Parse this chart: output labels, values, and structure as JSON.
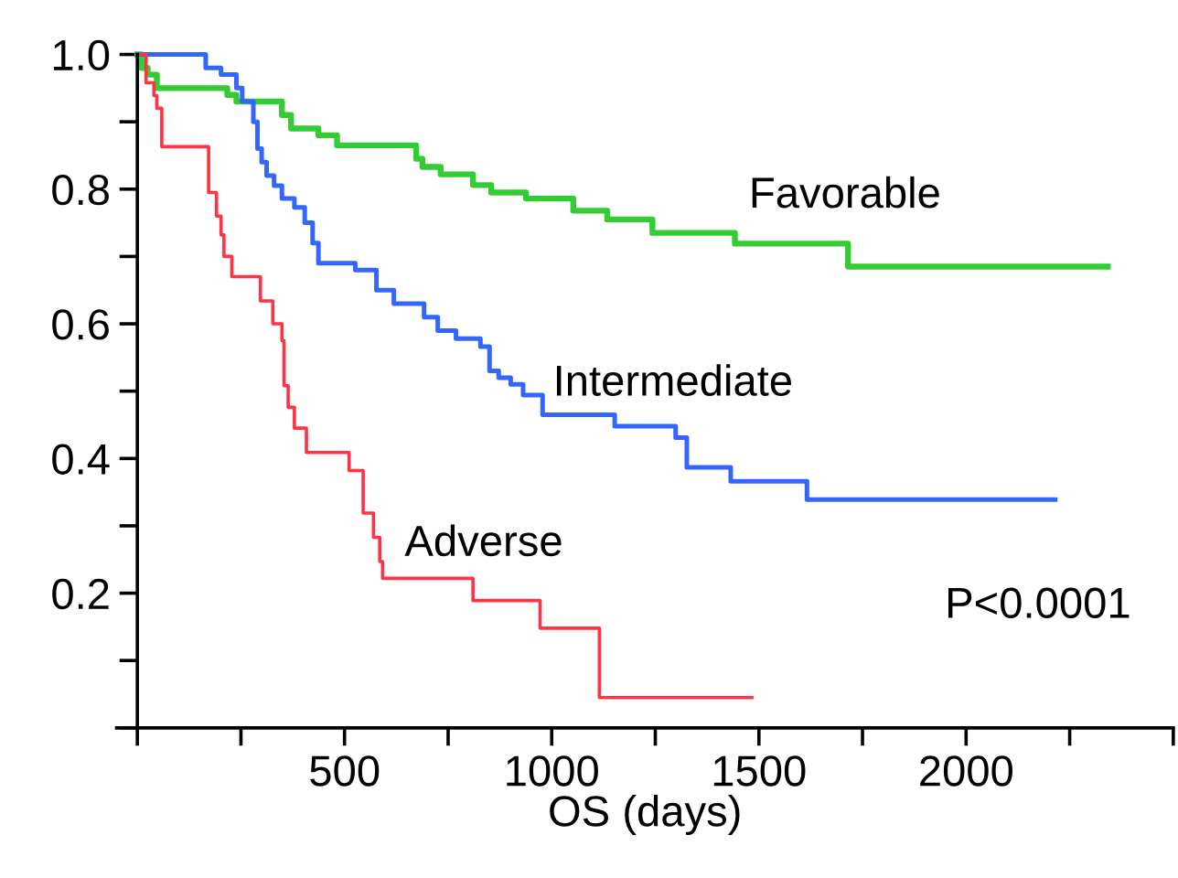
{
  "chart_data": {
    "type": "step",
    "xlabel": "OS (days)",
    "xlim": [
      -50,
      2500
    ],
    "xticks": [
      {
        "value": 0,
        "label": null
      },
      {
        "value": 250,
        "label": null
      },
      500,
      {
        "value": 750,
        "label": null
      },
      1000,
      {
        "value": 1250,
        "label": null
      },
      1500,
      {
        "value": 1750,
        "label": null
      },
      2000,
      {
        "value": 2250,
        "label": null
      },
      {
        "value": 2500,
        "label": null
      }
    ],
    "ylim": [
      0,
      1.0
    ],
    "yticks": [
      {
        "value": 0,
        "label": null
      },
      {
        "value": 0.1,
        "label": null
      },
      {
        "value": 0.2,
        "label": "0.2"
      },
      {
        "value": 0.3,
        "label": null
      },
      {
        "value": 0.4,
        "label": "0.4"
      },
      {
        "value": 0.5,
        "label": null
      },
      {
        "value": 0.6,
        "label": "0.6"
      },
      {
        "value": 0.7,
        "label": null
      },
      {
        "value": 0.8,
        "label": "0.8"
      },
      {
        "value": 0.9,
        "label": null
      },
      {
        "value": 1.0,
        "label": "1.0"
      }
    ],
    "grid": false,
    "legend": false,
    "marker": "none",
    "line_style": "solid",
    "annotations": [
      "P<0.0001"
    ],
    "series": [
      {
        "name": "Favorable",
        "color": "#33cc33",
        "x": [
          0,
          10,
          25,
          47,
          217,
          239,
          349,
          371,
          437,
          482,
          673,
          688,
          732,
          810,
          854,
          938,
          1052,
          1134,
          1243,
          1442,
          1715,
          2342
        ],
        "values": [
          1.0,
          0.98,
          0.97,
          0.95,
          0.94,
          0.93,
          0.91,
          0.89,
          0.88,
          0.865,
          0.845,
          0.833,
          0.822,
          0.806,
          0.795,
          0.786,
          0.768,
          0.755,
          0.735,
          0.719,
          0.685,
          0.685
        ]
      },
      {
        "name": "Intermediate",
        "color": "#3366ff",
        "x": [
          0,
          165,
          202,
          239,
          253,
          280,
          290,
          300,
          312,
          330,
          349,
          379,
          404,
          423,
          437,
          526,
          577,
          619,
          692,
          725,
          769,
          828,
          850,
          872,
          901,
          931,
          978,
          1152,
          1299,
          1326,
          1432,
          1616,
          2215
        ],
        "values": [
          1.0,
          0.98,
          0.97,
          0.95,
          0.93,
          0.9,
          0.86,
          0.84,
          0.82,
          0.805,
          0.786,
          0.773,
          0.75,
          0.72,
          0.69,
          0.68,
          0.65,
          0.63,
          0.61,
          0.59,
          0.578,
          0.566,
          0.53,
          0.52,
          0.51,
          0.494,
          0.465,
          0.448,
          0.431,
          0.387,
          0.366,
          0.339,
          0.339
        ]
      },
      {
        "name": "Adverse",
        "color": "#ff3344",
        "x": [
          0,
          21,
          40,
          47,
          59,
          172,
          191,
          202,
          209,
          228,
          297,
          327,
          349,
          354,
          364,
          379,
          408,
          511,
          545,
          570,
          585,
          592,
          810,
          972,
          1115,
          1483
        ],
        "values": [
          1.0,
          0.958,
          0.939,
          0.92,
          0.863,
          0.795,
          0.76,
          0.732,
          0.7,
          0.67,
          0.634,
          0.6,
          0.575,
          0.508,
          0.476,
          0.445,
          0.409,
          0.382,
          0.319,
          0.283,
          0.247,
          0.222,
          0.189,
          0.148,
          0.045,
          0.045
        ]
      }
    ]
  }
}
